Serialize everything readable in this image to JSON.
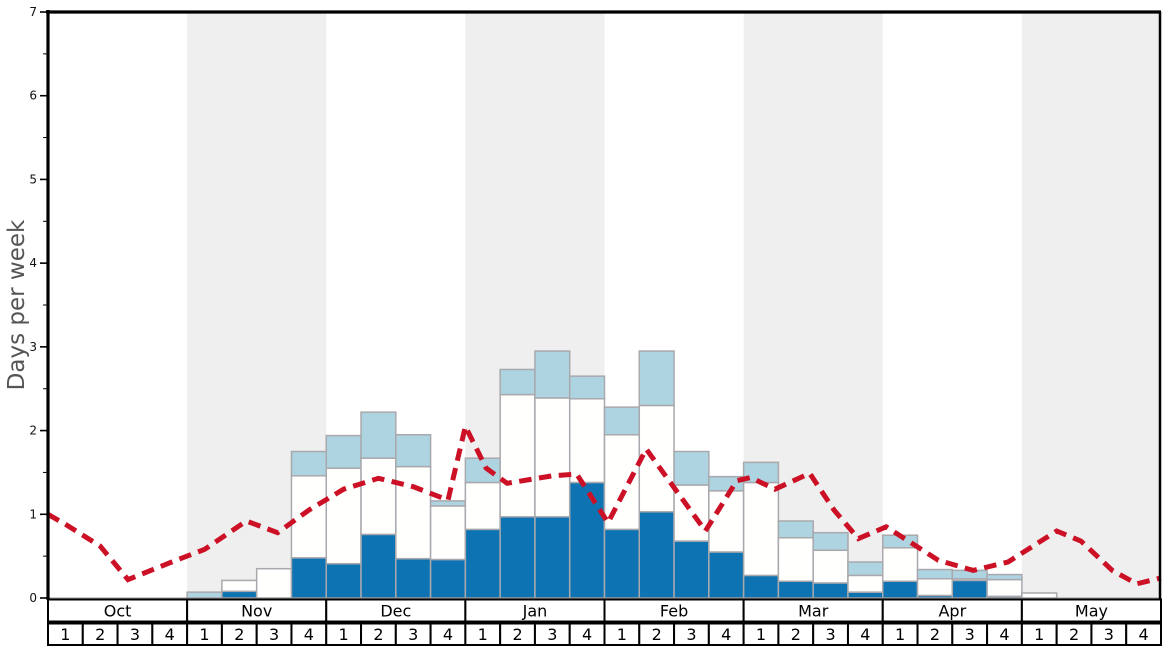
{
  "chart_data": {
    "type": "bar",
    "subtype": "stacked-weekly-bars-with-dashed-line",
    "title": "",
    "ylabel": "Days per week",
    "xlabel": "",
    "ylim": [
      0,
      7
    ],
    "ytick_step": 1,
    "yminor_step": 0.5,
    "grid": "off",
    "legend": "none",
    "months": [
      {
        "label": "Oct",
        "shaded": false
      },
      {
        "label": "Nov",
        "shaded": true
      },
      {
        "label": "Dec",
        "shaded": false
      },
      {
        "label": "Jan",
        "shaded": true
      },
      {
        "label": "Feb",
        "shaded": false
      },
      {
        "label": "Mar",
        "shaded": true
      },
      {
        "label": "Apr",
        "shaded": false
      },
      {
        "label": "May",
        "shaded": true
      }
    ],
    "weeks_per_month": 4,
    "week_labels": [
      "1",
      "2",
      "3",
      "4"
    ],
    "series": [
      {
        "name": "dark-blue-segment",
        "color": "#0e73b2",
        "values": [
          0,
          0,
          0,
          0,
          0,
          0.08,
          0,
          0.48,
          0.41,
          0.76,
          0.47,
          0.46,
          0.82,
          0.97,
          0.97,
          1.38,
          0.82,
          1.03,
          0.68,
          0.55,
          0.27,
          0.2,
          0.18,
          0.07,
          0.2,
          0.03,
          0.21,
          0.02,
          0,
          0,
          0,
          0
        ]
      },
      {
        "name": "white-segment",
        "color": "#fffffe",
        "values": [
          0,
          0,
          0,
          0,
          0,
          0.13,
          0.35,
          0.98,
          1.14,
          0.91,
          1.1,
          0.64,
          0.56,
          1.46,
          1.42,
          1.0,
          1.13,
          1.27,
          0.67,
          0.73,
          1.11,
          0.52,
          0.39,
          0.2,
          0.4,
          0.2,
          0.02,
          0.2,
          0.06,
          0,
          0,
          0
        ]
      },
      {
        "name": "light-blue-segment",
        "color": "#aed4e1",
        "values": [
          0,
          0,
          0,
          0,
          0.07,
          0,
          0,
          0.29,
          0.39,
          0.55,
          0.38,
          0.06,
          0.29,
          0.3,
          0.56,
          0.27,
          0.33,
          0.65,
          0.4,
          0.17,
          0.24,
          0.2,
          0.21,
          0.16,
          0.15,
          0.11,
          0.1,
          0.06,
          0,
          0,
          0,
          0
        ]
      }
    ],
    "line": {
      "name": "red-dashed-line",
      "color": "#cc1126",
      "width": 5,
      "dash": [
        12.5,
        7.5
      ],
      "points_week_units": [
        [
          0.0,
          1.0
        ],
        [
          0.5,
          0.88
        ],
        [
          1.5,
          0.62
        ],
        [
          2.3,
          0.22
        ],
        [
          3.5,
          0.42
        ],
        [
          4.5,
          0.58
        ],
        [
          5.7,
          0.92
        ],
        [
          6.6,
          0.78
        ],
        [
          7.5,
          1.05
        ],
        [
          8.5,
          1.3
        ],
        [
          9.5,
          1.43
        ],
        [
          10.5,
          1.33
        ],
        [
          11.5,
          1.17
        ],
        [
          12.0,
          2.05
        ],
        [
          12.6,
          1.55
        ],
        [
          13.2,
          1.37
        ],
        [
          14.5,
          1.46
        ],
        [
          15.2,
          1.48
        ],
        [
          16.1,
          0.9
        ],
        [
          17.2,
          1.78
        ],
        [
          18.9,
          0.8
        ],
        [
          19.8,
          1.4
        ],
        [
          20.2,
          1.44
        ],
        [
          20.9,
          1.3
        ],
        [
          21.9,
          1.49
        ],
        [
          22.6,
          1.05
        ],
        [
          23.3,
          0.71
        ],
        [
          24.1,
          0.85
        ],
        [
          25.6,
          0.45
        ],
        [
          26.6,
          0.33
        ],
        [
          27.6,
          0.43
        ],
        [
          29.0,
          0.8
        ],
        [
          29.7,
          0.68
        ],
        [
          30.6,
          0.33
        ],
        [
          31.3,
          0.17
        ],
        [
          32.0,
          0.24
        ]
      ]
    },
    "colors": {
      "shaded_band": "#efefef",
      "bar_border": "#a9a9ad",
      "axis": "#000000",
      "tick_label": "#111111",
      "ylabel_color": "#555555",
      "table_border": "#000000",
      "baseline": "#999999"
    },
    "ytick_labels": [
      "0",
      "1",
      "2",
      "3",
      "4",
      "5",
      "6",
      "7"
    ]
  }
}
